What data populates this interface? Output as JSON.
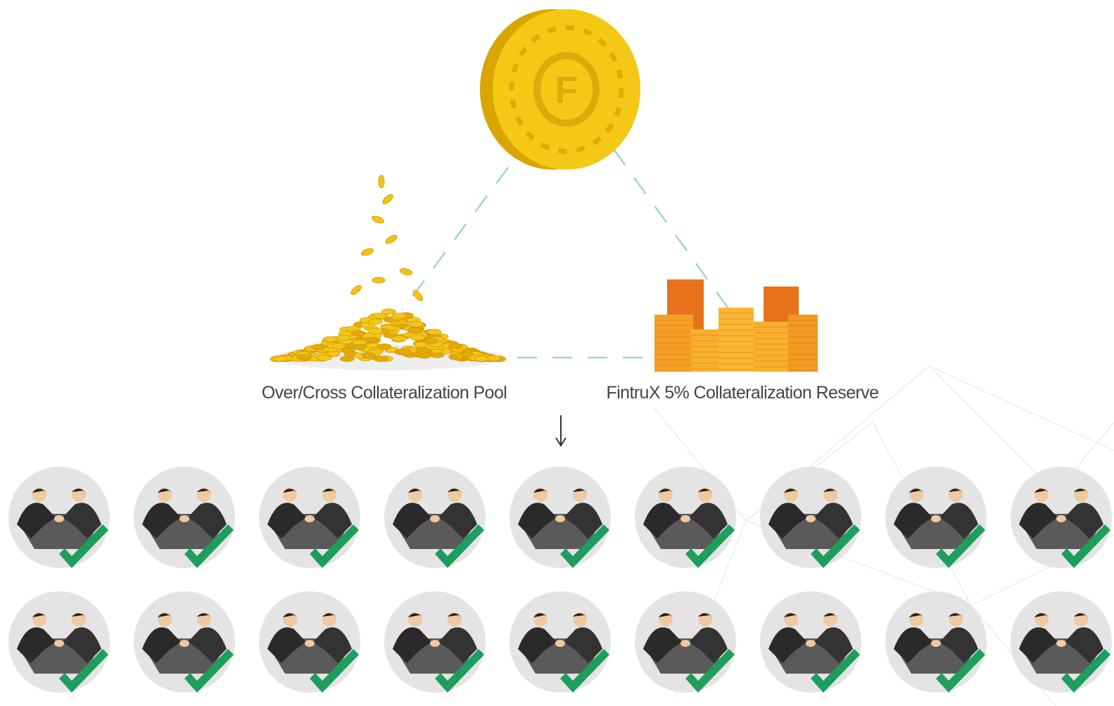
{
  "labels": {
    "pool": "Over/Cross Collateralization Pool",
    "reserve": "FintruX 5% Collateralization Reserve"
  }
}
